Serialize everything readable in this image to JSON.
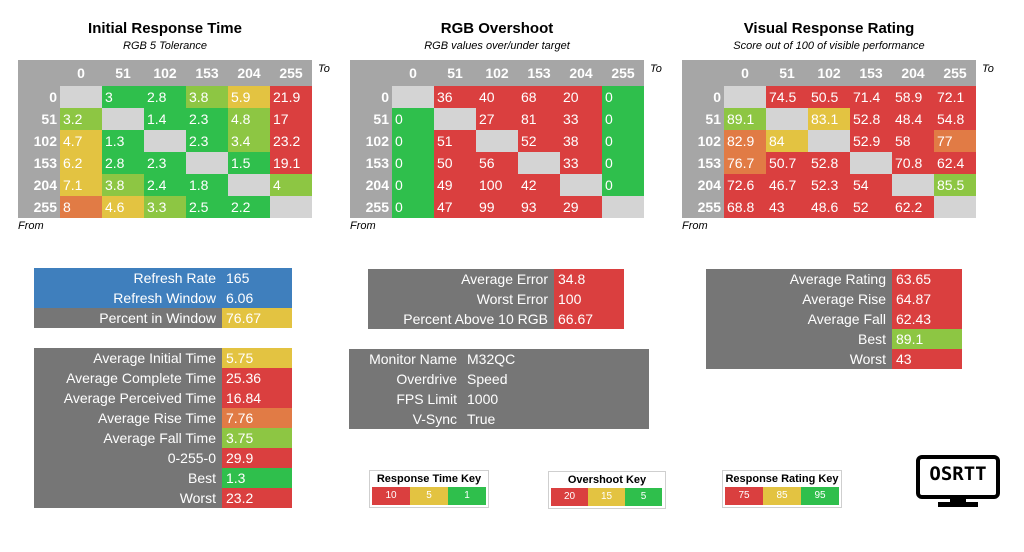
{
  "colors": {
    "green": "#2fbf4c",
    "lime": "#8dc643",
    "yellow": "#e3c341",
    "orange": "#e17b45",
    "red": "#da3f3f",
    "gray_header": "#a6a6a6",
    "gray_panel": "#767676",
    "blue": "#3f7fbd",
    "diag": "#d4d4d4"
  },
  "matrices": [
    {
      "title": "Initial Response Time",
      "subtitle": "RGB 5 Tolerance",
      "to_label": "To",
      "from_label": "From",
      "headers": [
        "0",
        "51",
        "102",
        "153",
        "204",
        "255"
      ],
      "rows": [
        {
          "label": "0",
          "cells": [
            {
              "v": "",
              "c": "diag"
            },
            {
              "v": "3",
              "c": "green"
            },
            {
              "v": "2.8",
              "c": "green"
            },
            {
              "v": "3.8",
              "c": "lime"
            },
            {
              "v": "5.9",
              "c": "yellow"
            },
            {
              "v": "21.9",
              "c": "red"
            }
          ]
        },
        {
          "label": "51",
          "cells": [
            {
              "v": "3.2",
              "c": "lime"
            },
            {
              "v": "",
              "c": "diag"
            },
            {
              "v": "1.4",
              "c": "green"
            },
            {
              "v": "2.3",
              "c": "green"
            },
            {
              "v": "4.8",
              "c": "lime"
            },
            {
              "v": "17",
              "c": "red"
            }
          ]
        },
        {
          "label": "102",
          "cells": [
            {
              "v": "4.7",
              "c": "yellow"
            },
            {
              "v": "1.3",
              "c": "green"
            },
            {
              "v": "",
              "c": "diag"
            },
            {
              "v": "2.3",
              "c": "green"
            },
            {
              "v": "3.4",
              "c": "lime"
            },
            {
              "v": "23.2",
              "c": "red"
            }
          ]
        },
        {
          "label": "153",
          "cells": [
            {
              "v": "6.2",
              "c": "yellow"
            },
            {
              "v": "2.8",
              "c": "green"
            },
            {
              "v": "2.3",
              "c": "green"
            },
            {
              "v": "",
              "c": "diag"
            },
            {
              "v": "1.5",
              "c": "green"
            },
            {
              "v": "19.1",
              "c": "red"
            }
          ]
        },
        {
          "label": "204",
          "cells": [
            {
              "v": "7.1",
              "c": "yellow"
            },
            {
              "v": "3.8",
              "c": "lime"
            },
            {
              "v": "2.4",
              "c": "green"
            },
            {
              "v": "1.8",
              "c": "green"
            },
            {
              "v": "",
              "c": "diag"
            },
            {
              "v": "4",
              "c": "lime"
            }
          ]
        },
        {
          "label": "255",
          "cells": [
            {
              "v": "8",
              "c": "orange"
            },
            {
              "v": "4.6",
              "c": "yellow"
            },
            {
              "v": "3.3",
              "c": "lime"
            },
            {
              "v": "2.5",
              "c": "green"
            },
            {
              "v": "2.2",
              "c": "green"
            },
            {
              "v": "",
              "c": "diag"
            }
          ]
        }
      ]
    },
    {
      "title": "RGB Overshoot",
      "subtitle": "RGB values over/under target",
      "to_label": "To",
      "from_label": "From",
      "headers": [
        "0",
        "51",
        "102",
        "153",
        "204",
        "255"
      ],
      "rows": [
        {
          "label": "0",
          "cells": [
            {
              "v": "",
              "c": "diag"
            },
            {
              "v": "36",
              "c": "red"
            },
            {
              "v": "40",
              "c": "red"
            },
            {
              "v": "68",
              "c": "red"
            },
            {
              "v": "20",
              "c": "red"
            },
            {
              "v": "0",
              "c": "green"
            }
          ]
        },
        {
          "label": "51",
          "cells": [
            {
              "v": "0",
              "c": "green"
            },
            {
              "v": "",
              "c": "diag"
            },
            {
              "v": "27",
              "c": "red"
            },
            {
              "v": "81",
              "c": "red"
            },
            {
              "v": "33",
              "c": "red"
            },
            {
              "v": "0",
              "c": "green"
            }
          ]
        },
        {
          "label": "102",
          "cells": [
            {
              "v": "0",
              "c": "green"
            },
            {
              "v": "51",
              "c": "red"
            },
            {
              "v": "",
              "c": "diag"
            },
            {
              "v": "52",
              "c": "red"
            },
            {
              "v": "38",
              "c": "red"
            },
            {
              "v": "0",
              "c": "green"
            }
          ]
        },
        {
          "label": "153",
          "cells": [
            {
              "v": "0",
              "c": "green"
            },
            {
              "v": "50",
              "c": "red"
            },
            {
              "v": "56",
              "c": "red"
            },
            {
              "v": "",
              "c": "diag"
            },
            {
              "v": "33",
              "c": "red"
            },
            {
              "v": "0",
              "c": "green"
            }
          ]
        },
        {
          "label": "204",
          "cells": [
            {
              "v": "0",
              "c": "green"
            },
            {
              "v": "49",
              "c": "red"
            },
            {
              "v": "100",
              "c": "red"
            },
            {
              "v": "42",
              "c": "red"
            },
            {
              "v": "",
              "c": "diag"
            },
            {
              "v": "0",
              "c": "green"
            }
          ]
        },
        {
          "label": "255",
          "cells": [
            {
              "v": "0",
              "c": "green"
            },
            {
              "v": "47",
              "c": "red"
            },
            {
              "v": "99",
              "c": "red"
            },
            {
              "v": "93",
              "c": "red"
            },
            {
              "v": "29",
              "c": "red"
            },
            {
              "v": "",
              "c": "diag"
            }
          ]
        }
      ]
    },
    {
      "title": "Visual Response Rating",
      "subtitle": "Score out of 100 of visible performance",
      "to_label": "To",
      "from_label": "From",
      "headers": [
        "0",
        "51",
        "102",
        "153",
        "204",
        "255"
      ],
      "rows": [
        {
          "label": "0",
          "cells": [
            {
              "v": "",
              "c": "diag"
            },
            {
              "v": "74.5",
              "c": "red"
            },
            {
              "v": "50.5",
              "c": "red"
            },
            {
              "v": "71.4",
              "c": "red"
            },
            {
              "v": "58.9",
              "c": "red"
            },
            {
              "v": "72.1",
              "c": "red"
            }
          ]
        },
        {
          "label": "51",
          "cells": [
            {
              "v": "89.1",
              "c": "lime"
            },
            {
              "v": "",
              "c": "diag"
            },
            {
              "v": "83.1",
              "c": "yellow"
            },
            {
              "v": "52.8",
              "c": "red"
            },
            {
              "v": "48.4",
              "c": "red"
            },
            {
              "v": "54.8",
              "c": "red"
            }
          ]
        },
        {
          "label": "102",
          "cells": [
            {
              "v": "82.9",
              "c": "orange"
            },
            {
              "v": "84",
              "c": "yellow"
            },
            {
              "v": "",
              "c": "diag"
            },
            {
              "v": "52.9",
              "c": "red"
            },
            {
              "v": "58",
              "c": "red"
            },
            {
              "v": "77",
              "c": "orange"
            }
          ]
        },
        {
          "label": "153",
          "cells": [
            {
              "v": "76.7",
              "c": "orange"
            },
            {
              "v": "50.7",
              "c": "red"
            },
            {
              "v": "52.8",
              "c": "red"
            },
            {
              "v": "",
              "c": "diag"
            },
            {
              "v": "70.8",
              "c": "red"
            },
            {
              "v": "62.4",
              "c": "red"
            }
          ]
        },
        {
          "label": "204",
          "cells": [
            {
              "v": "72.6",
              "c": "red"
            },
            {
              "v": "46.7",
              "c": "red"
            },
            {
              "v": "52.3",
              "c": "red"
            },
            {
              "v": "54",
              "c": "red"
            },
            {
              "v": "",
              "c": "diag"
            },
            {
              "v": "85.5",
              "c": "lime"
            }
          ]
        },
        {
          "label": "255",
          "cells": [
            {
              "v": "68.8",
              "c": "red"
            },
            {
              "v": "43",
              "c": "red"
            },
            {
              "v": "48.6",
              "c": "red"
            },
            {
              "v": "52",
              "c": "red"
            },
            {
              "v": "62.2",
              "c": "red"
            },
            {
              "v": "",
              "c": "diag"
            }
          ]
        }
      ]
    }
  ],
  "panels": {
    "refresh": [
      {
        "label": "Refresh Rate",
        "value": "165",
        "lc": "blue",
        "vc": "blue"
      },
      {
        "label": "Refresh Window",
        "value": "6.06",
        "lc": "blue",
        "vc": "blue"
      },
      {
        "label": "Percent in Window",
        "value": "76.67",
        "lc": "gray",
        "vc": "yellow"
      }
    ],
    "times": [
      {
        "label": "Average Initial Time",
        "value": "5.75",
        "lc": "gray",
        "vc": "yellow"
      },
      {
        "label": "Average Complete Time",
        "value": "25.36",
        "lc": "gray",
        "vc": "red"
      },
      {
        "label": "Average Perceived Time",
        "value": "16.84",
        "lc": "gray",
        "vc": "red"
      },
      {
        "label": "Average Rise Time",
        "value": "7.76",
        "lc": "gray",
        "vc": "orange"
      },
      {
        "label": "Average Fall Time",
        "value": "3.75",
        "lc": "gray",
        "vc": "lime"
      },
      {
        "label": "0-255-0",
        "value": "29.9",
        "lc": "gray",
        "vc": "red"
      },
      {
        "label": "Best",
        "value": "1.3",
        "lc": "gray",
        "vc": "green"
      },
      {
        "label": "Worst",
        "value": "23.2",
        "lc": "gray",
        "vc": "red"
      }
    ],
    "overshoot": [
      {
        "label": "Average Error",
        "value": "34.8",
        "lc": "gray",
        "vc": "red"
      },
      {
        "label": "Worst Error",
        "value": "100",
        "lc": "gray",
        "vc": "red"
      },
      {
        "label": "Percent Above 10 RGB",
        "value": "66.67",
        "lc": "gray",
        "vc": "red"
      }
    ],
    "monitor": [
      {
        "label": "Monitor Name",
        "value": "M32QC",
        "lc": "gray",
        "vc": "gray"
      },
      {
        "label": "Overdrive",
        "value": "Speed",
        "lc": "gray",
        "vc": "gray"
      },
      {
        "label": "FPS Limit",
        "value": "1000",
        "lc": "gray",
        "vc": "gray"
      },
      {
        "label": "V-Sync",
        "value": "True",
        "lc": "gray",
        "vc": "gray"
      }
    ],
    "rating": [
      {
        "label": "Average Rating",
        "value": "63.65",
        "lc": "gray",
        "vc": "red"
      },
      {
        "label": "Average Rise",
        "value": "64.87",
        "lc": "gray",
        "vc": "red"
      },
      {
        "label": "Average Fall",
        "value": "62.43",
        "lc": "gray",
        "vc": "red"
      },
      {
        "label": "Best",
        "value": "89.1",
        "lc": "gray",
        "vc": "lime"
      },
      {
        "label": "Worst",
        "value": "43",
        "lc": "gray",
        "vc": "red"
      }
    ]
  },
  "keys": [
    {
      "title": "Response Time Key",
      "cells": [
        {
          "v": "10",
          "c": "red"
        },
        {
          "v": "5",
          "c": "yellow"
        },
        {
          "v": "1",
          "c": "green"
        }
      ]
    },
    {
      "title": "Overshoot Key",
      "cells": [
        {
          "v": "20",
          "c": "red"
        },
        {
          "v": "15",
          "c": "yellow"
        },
        {
          "v": "5",
          "c": "green"
        }
      ]
    },
    {
      "title": "Response Rating Key",
      "cells": [
        {
          "v": "75",
          "c": "red"
        },
        {
          "v": "85",
          "c": "yellow"
        },
        {
          "v": "95",
          "c": "green"
        }
      ]
    }
  ],
  "logo": {
    "text": "OSRTT",
    "icon": "monitor-logo-icon"
  }
}
